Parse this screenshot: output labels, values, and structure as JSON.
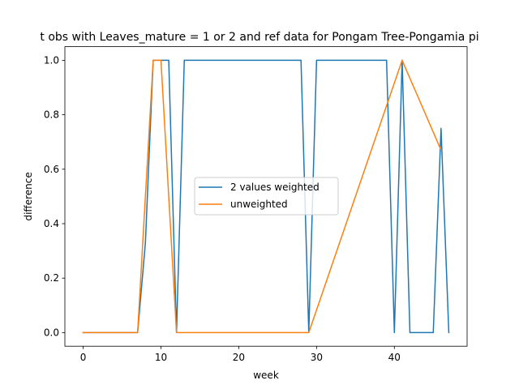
{
  "chart_data": {
    "type": "line",
    "title": "t obs with Leaves_mature = 1 or 2 and ref data for Pongam Tree-Pongamia pi",
    "xlabel": "week",
    "ylabel": "difference",
    "xlim": [
      -2.35,
      49.35
    ],
    "ylim": [
      -0.05,
      1.05
    ],
    "xticks": [
      0,
      10,
      20,
      30,
      40
    ],
    "yticks": [
      0.0,
      0.2,
      0.4,
      0.6,
      0.8,
      1.0
    ],
    "xtick_labels": [
      "0",
      "10",
      "20",
      "30",
      "40"
    ],
    "ytick_labels": [
      "0.0",
      "0.2",
      "0.4",
      "0.6",
      "0.8",
      "1.0"
    ],
    "grid": false,
    "legend_position": "center",
    "series": [
      {
        "name": "2 values weighted",
        "color": "#1f77b4",
        "x": [
          0,
          7,
          8,
          9,
          10,
          11,
          12,
          13,
          28,
          29,
          30,
          39,
          40,
          41,
          42,
          45,
          46,
          47
        ],
        "y": [
          0,
          0,
          0.33,
          1,
          1,
          1,
          0,
          1,
          1,
          0,
          1,
          1,
          0,
          1,
          0,
          0,
          0.75,
          0
        ]
      },
      {
        "name": "unweighted",
        "color": "#ff7f0e",
        "x": [
          0,
          7,
          9,
          10,
          12,
          29,
          41,
          46
        ],
        "y": [
          0,
          0,
          1,
          1,
          0,
          0,
          1,
          0.67
        ]
      }
    ]
  }
}
